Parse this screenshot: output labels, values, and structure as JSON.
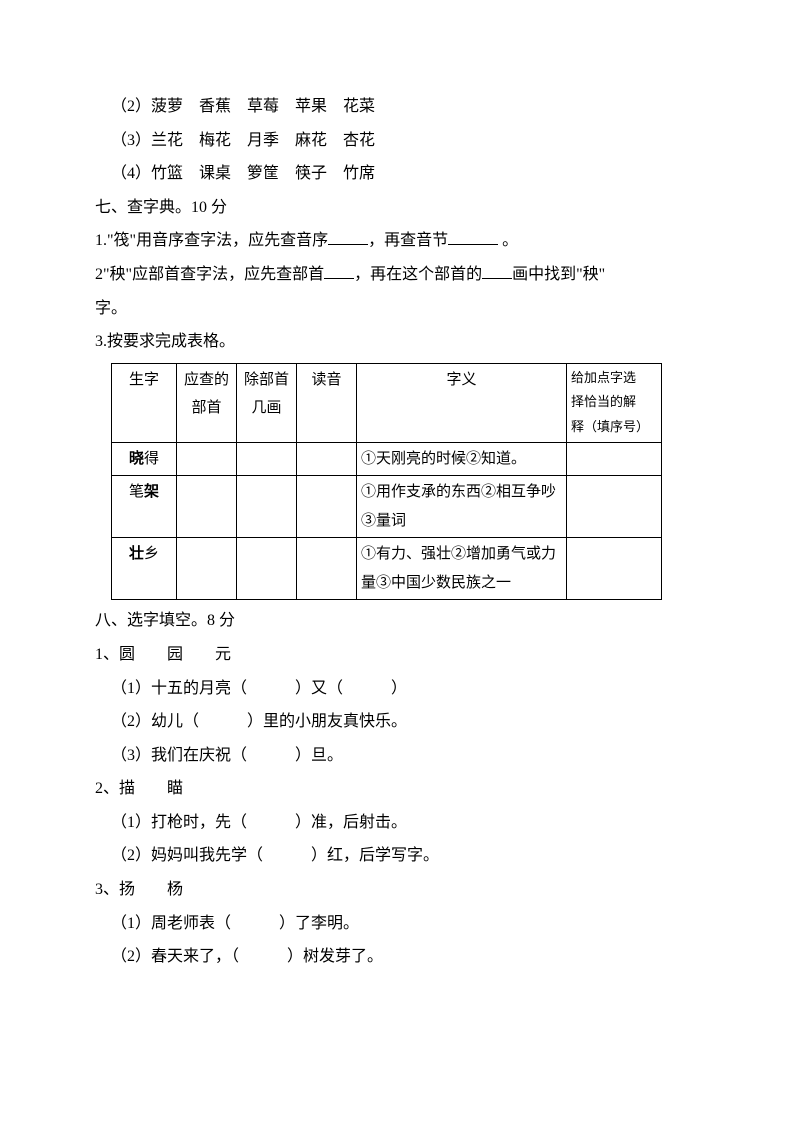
{
  "lines": {
    "l2": "（2）菠萝　香蕉　草莓　苹果　花菜",
    "l3": "（3）兰花　梅花　月季　麻花　杏花",
    "l4": "（4）竹篮　课桌　箩筐　筷子　竹席"
  },
  "section7": {
    "title": "七、查字典。10 分",
    "q1a": "1.\"筏\"用音序查字法，应先查音序",
    "q1b": "，再查音节",
    "q1c": " 。",
    "q2a": "2\"秧\"应部首查字法，应先查部首",
    "q2b": "，再在这个部首的",
    "q2c": "画中找到\"秧\"",
    "q2d": "字。",
    "q3": "3.按要求完成表格。"
  },
  "table": {
    "headers": {
      "c1": "生字",
      "c2a": "应查的",
      "c2b": "部首",
      "c3a": "除部首",
      "c3b": "几画",
      "c4": "读音",
      "c5": "字义",
      "c6a": "给加点字选",
      "c6b": "择恰当的解",
      "c6c": "释（填序号）"
    },
    "rows": [
      {
        "char": "晓",
        "suffix": "得",
        "meaning": "①天刚亮的时候②知道。"
      },
      {
        "char": "笔",
        "charPlain": true,
        "suffix": "架",
        "meaning": "①用作支承的东西②相互争吵③量词"
      },
      {
        "char": "壮",
        "suffix": "乡",
        "meaning": "①有力、强壮②增加勇气或力量③中国少数民族之一"
      }
    ]
  },
  "section8": {
    "title": "八、选字填空。8 分",
    "g1": "1、圆　　园　　元",
    "g1_1a": "（1）十五的月亮（　　　）又（　　　）",
    "g1_2": "（2）幼儿（　　　）里的小朋友真快乐。",
    "g1_3": "（3）我们在庆祝（　　　）旦。",
    "g2": "2、描　　瞄",
    "g2_1": "（1）打枪时，先（　　　）准，后射击。",
    "g2_2": "（2）妈妈叫我先学（　　　）红，后学写字。",
    "g3": "3、扬　　杨",
    "g3_1": "（1）周老师表（　　　）了李明。",
    "g3_2": "（2）春天来了，（　　　）树发芽了。"
  }
}
